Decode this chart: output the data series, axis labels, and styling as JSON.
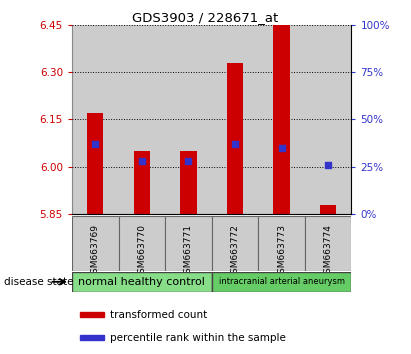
{
  "title": "GDS3903 / 228671_at",
  "samples": [
    "GSM663769",
    "GSM663770",
    "GSM663771",
    "GSM663772",
    "GSM663773",
    "GSM663774"
  ],
  "transformed_counts": [
    6.17,
    6.05,
    6.05,
    6.33,
    6.45,
    5.88
  ],
  "percentile_ranks": [
    37,
    28,
    28,
    37,
    35,
    26
  ],
  "ylim": [
    5.85,
    6.45
  ],
  "y_ticks": [
    5.85,
    6.0,
    6.15,
    6.3,
    6.45
  ],
  "right_yticks": [
    0,
    25,
    50,
    75,
    100
  ],
  "bar_color": "#cc0000",
  "dot_color": "#3333cc",
  "groups": [
    {
      "label": "normal healthy control",
      "samples": [
        0,
        1,
        2
      ],
      "color": "#88dd88"
    },
    {
      "label": "intracranial arterial aneurysm",
      "samples": [
        3,
        4,
        5
      ],
      "color": "#66cc66"
    }
  ],
  "disease_state_label": "disease state",
  "legend_items": [
    {
      "label": "transformed count",
      "color": "#cc0000"
    },
    {
      "label": "percentile rank within the sample",
      "color": "#3333cc"
    }
  ],
  "sample_bg_color": "#cccccc",
  "plot_bg": "#ffffff",
  "left_label_color": "#cc0000",
  "right_label_color": "#3333cc",
  "bar_width": 0.35
}
